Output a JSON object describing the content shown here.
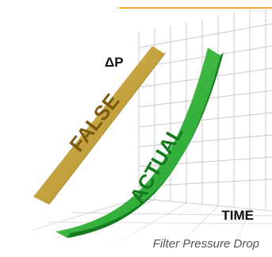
{
  "axis_labels": {
    "y": "ΔP",
    "x": "TIME"
  },
  "ribbons": [
    {
      "label": "FALSE"
    },
    {
      "label": "ACTUAL"
    }
  ],
  "caption": "Filter Pressure Drop"
}
